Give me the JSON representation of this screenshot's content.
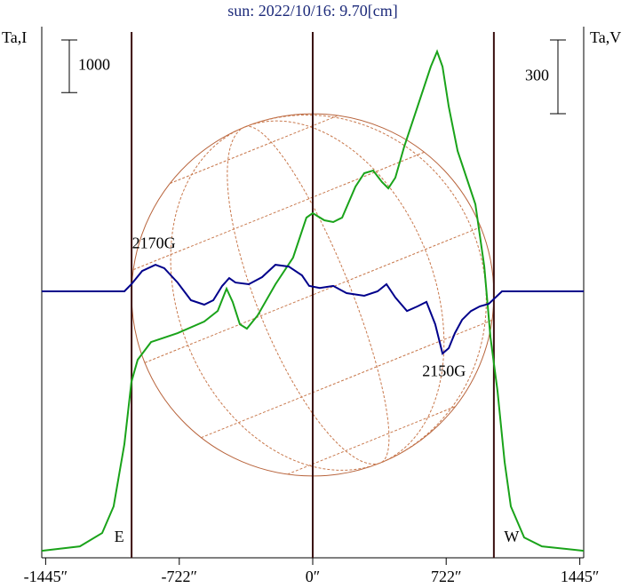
{
  "chart_data": {
    "type": "line",
    "title": "sun: 2022/10/16: 9.70[cm]",
    "ylabel": "Ta,I",
    "y2label": "Ta,V",
    "xlim": [
      -1466,
      1466
    ],
    "xticks": [
      {
        "value": -1445,
        "label": "-1445″"
      },
      {
        "value": -722,
        "label": "-722″"
      },
      {
        "value": 0,
        "label": "0″"
      },
      {
        "value": 722,
        "label": "722″"
      },
      {
        "value": 1445,
        "label": "1445″"
      }
    ],
    "ylim": [
      -100,
      10000
    ],
    "y2lim": [
      -1084,
      1077
    ],
    "scale_bar": {
      "value": 1000,
      "label": "1000"
    },
    "scale_bar2": {
      "value": 300,
      "label": "300"
    },
    "vlines": [
      -980,
      0,
      980
    ],
    "limb_labels": [
      "E",
      "W"
    ],
    "annotations": [
      {
        "text": "2170G",
        "x": -860,
        "y": 190
      },
      {
        "text": "2150G",
        "x": 710,
        "y": -330
      }
    ],
    "series": [
      {
        "name": "Ta,I",
        "color": "#1aa31a",
        "x": [
          -1466,
          -1260,
          -1139,
          -1077,
          -1019,
          -981,
          -947,
          -875,
          -731,
          -587,
          -514,
          -466,
          -433,
          -394,
          -356,
          -298,
          -202,
          -106,
          -34,
          0,
          63,
          111,
          159,
          231,
          279,
          327,
          375,
          409,
          447,
          495,
          567,
          639,
          673,
          702,
          736,
          784,
          832,
          880,
          928,
          962,
          1000,
          1038,
          1072,
          1144,
          1240,
          1466
        ],
        "values": [
          34,
          118,
          372,
          878,
          2061,
          3243,
          3666,
          4003,
          4172,
          4392,
          4595,
          5017,
          4764,
          4341,
          4257,
          4510,
          5101,
          5608,
          6368,
          6453,
          6318,
          6284,
          6368,
          6959,
          7213,
          7264,
          7044,
          6926,
          7128,
          7720,
          8480,
          9240,
          9527,
          9240,
          8480,
          7635,
          7128,
          6622,
          5439,
          4088,
          3074,
          1723,
          878,
          287,
          118,
          34
        ]
      },
      {
        "name": "Ta,V",
        "color": "#00008b",
        "axis": "y2",
        "x": [
          -1466,
          -1019,
          -981,
          -923,
          -851,
          -803,
          -731,
          -659,
          -587,
          -538,
          -490,
          -452,
          -418,
          -346,
          -274,
          -202,
          -130,
          -58,
          -19,
          38,
          111,
          183,
          279,
          351,
          399,
          447,
          510,
          567,
          615,
          663,
          702,
          736,
          769,
          808,
          856,
          904,
          952,
          1024,
          1466
        ],
        "values": [
          0,
          0,
          29,
          83,
          108,
          94,
          36,
          -36,
          -54,
          -36,
          22,
          54,
          36,
          29,
          58,
          108,
          101,
          65,
          22,
          14,
          22,
          -7,
          -18,
          0,
          29,
          -25,
          -80,
          -61,
          -43,
          -134,
          -253,
          -231,
          -170,
          -116,
          -80,
          -61,
          -51,
          0,
          0
        ]
      }
    ]
  }
}
